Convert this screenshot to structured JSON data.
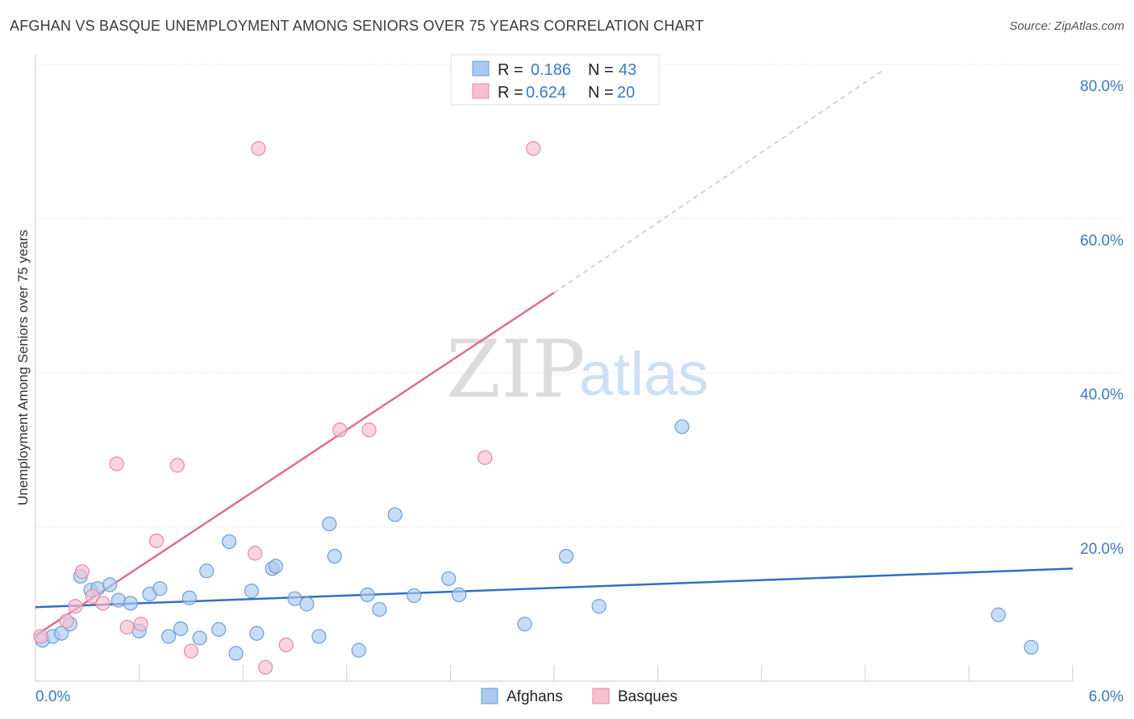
{
  "header": {
    "title": "AFGHAN VS BASQUE UNEMPLOYMENT AMONG SENIORS OVER 75 YEARS CORRELATION CHART",
    "source": "Source: ZipAtlas.com"
  },
  "watermark": {
    "zip": "ZIP",
    "atlas": "atlas"
  },
  "legend": {
    "r_label": "R =",
    "n_label": "N =",
    "rows": [
      {
        "series": "Afghans",
        "r": "0.186",
        "n": "43"
      },
      {
        "series": "Basques",
        "r": "0.624",
        "n": "20"
      }
    ]
  },
  "colors": {
    "afghans_fill": "#a9c9f0",
    "afghans_stroke": "#6a9fd8",
    "afghans_line": "#2f6fc6",
    "basques_fill": "#f7bfd0",
    "basques_stroke": "#e48aa8",
    "basques_line": "#e06a94",
    "grid": "#e6e6e6",
    "tick_text": "#3b78c4"
  },
  "chart_data": {
    "type": "scatter",
    "title": "AFGHAN VS BASQUE UNEMPLOYMENT AMONG SENIORS OVER 75 YEARS CORRELATION CHART",
    "xlabel": "",
    "ylabel": "Unemployment Among Seniors over 75 years",
    "xlim": [
      0,
      6
    ],
    "ylim": [
      0,
      80
    ],
    "x_tick_labels": [
      "0.0%",
      "6.0%"
    ],
    "y_ticks": [
      {
        "value": 20,
        "label": "20.0%"
      },
      {
        "value": 40,
        "label": "40.0%"
      },
      {
        "value": 60,
        "label": "60.0%"
      },
      {
        "value": 80,
        "label": "80.0%"
      }
    ],
    "grid": true,
    "legend_position": "top-center",
    "series": [
      {
        "name": "Afghans",
        "r": 0.186,
        "n": 43,
        "trend": {
          "x": [
            0,
            6
          ],
          "y": [
            9.6,
            14.6
          ]
        },
        "points": [
          [
            0.04,
            5.3
          ],
          [
            0.1,
            5.8
          ],
          [
            0.15,
            6.2
          ],
          [
            0.2,
            7.4
          ],
          [
            0.26,
            13.6
          ],
          [
            0.32,
            11.8
          ],
          [
            0.36,
            12.0
          ],
          [
            0.43,
            12.5
          ],
          [
            0.48,
            10.5
          ],
          [
            0.55,
            10.1
          ],
          [
            0.6,
            6.5
          ],
          [
            0.66,
            11.3
          ],
          [
            0.72,
            12.0
          ],
          [
            0.77,
            5.8
          ],
          [
            0.84,
            6.8
          ],
          [
            0.89,
            10.8
          ],
          [
            0.95,
            5.6
          ],
          [
            0.99,
            14.3
          ],
          [
            1.06,
            6.7
          ],
          [
            1.12,
            18.1
          ],
          [
            1.16,
            3.6
          ],
          [
            1.25,
            11.7
          ],
          [
            1.28,
            6.2
          ],
          [
            1.37,
            14.6
          ],
          [
            1.39,
            14.9
          ],
          [
            1.5,
            10.7
          ],
          [
            1.57,
            10.0
          ],
          [
            1.64,
            5.8
          ],
          [
            1.7,
            20.4
          ],
          [
            1.73,
            16.2
          ],
          [
            1.87,
            4.0
          ],
          [
            1.92,
            11.2
          ],
          [
            1.99,
            9.3
          ],
          [
            2.08,
            21.6
          ],
          [
            2.19,
            11.1
          ],
          [
            2.39,
            13.3
          ],
          [
            2.45,
            11.2
          ],
          [
            2.83,
            7.4
          ],
          [
            3.07,
            16.2
          ],
          [
            3.26,
            9.7
          ],
          [
            3.74,
            33.0
          ],
          [
            5.57,
            8.6
          ],
          [
            5.76,
            4.4
          ]
        ]
      },
      {
        "name": "Basques",
        "r": 0.624,
        "n": 20,
        "trend": {
          "x": [
            0,
            3.0
          ],
          "y": [
            5.9,
            50.4
          ]
        },
        "trend_extension": {
          "x": [
            3.0,
            4.9
          ],
          "y": [
            50.4,
            79.2
          ]
        },
        "points": [
          [
            0.03,
            5.8
          ],
          [
            0.18,
            7.8
          ],
          [
            0.23,
            9.7
          ],
          [
            0.27,
            14.2
          ],
          [
            0.33,
            11.0
          ],
          [
            0.39,
            10.1
          ],
          [
            0.47,
            28.2
          ],
          [
            0.53,
            7.0
          ],
          [
            0.61,
            7.4
          ],
          [
            0.7,
            18.2
          ],
          [
            0.82,
            28.0
          ],
          [
            0.9,
            3.9
          ],
          [
            1.27,
            16.6
          ],
          [
            1.29,
            69.1
          ],
          [
            1.33,
            1.8
          ],
          [
            1.45,
            4.7
          ],
          [
            1.76,
            32.6
          ],
          [
            1.93,
            32.6
          ],
          [
            2.6,
            29.0
          ],
          [
            2.88,
            69.1
          ]
        ]
      }
    ]
  }
}
